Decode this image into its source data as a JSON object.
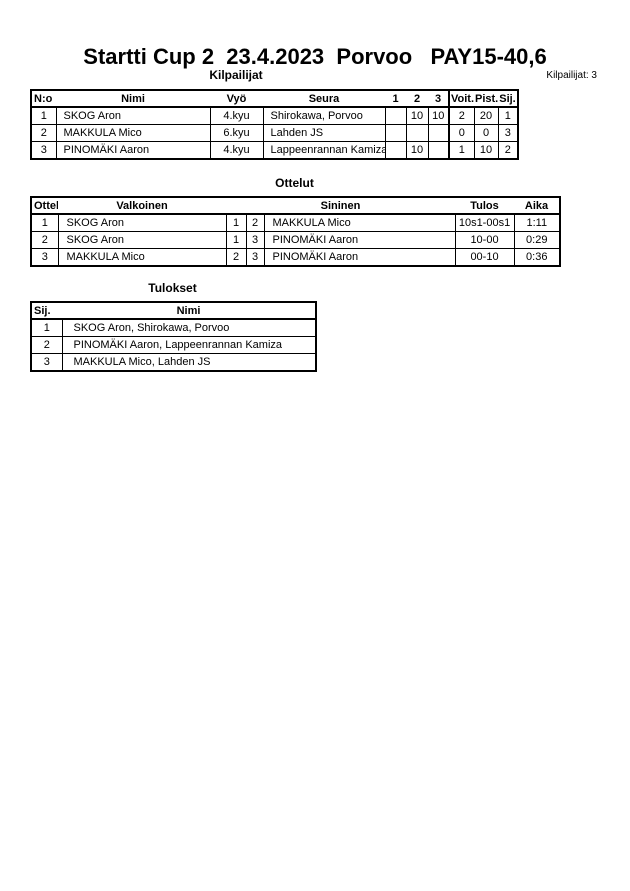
{
  "title": "Startti Cup 2  23.4.2023  Porvoo   PAY15-40,6",
  "competitors_count_label": "Kilpailijat: 3",
  "tables": {
    "kilpailijat": {
      "heading": "Kilpailijat",
      "columns": [
        "N:o",
        "Nimi",
        "Vyö",
        "Seura",
        "1",
        "2",
        "3",
        "Voit.",
        "Pist.",
        "Sij."
      ],
      "rows": [
        [
          "1",
          "SKOG Aron",
          "4.kyu",
          "Shirokawa, Porvoo",
          "",
          "10",
          "10",
          "2",
          "20",
          "1"
        ],
        [
          "2",
          "MAKKULA Mico",
          "6.kyu",
          "Lahden JS",
          "",
          "",
          "",
          "0",
          "0",
          "3"
        ],
        [
          "3",
          "PINOMÄKI Aaron",
          "4.kyu",
          "Lappeenrannan Kamiza",
          "",
          "10",
          "",
          "1",
          "10",
          "2"
        ]
      ]
    },
    "ottelut": {
      "heading": "Ottelut",
      "columns": [
        "Ottelu",
        "Valkoinen",
        "",
        "",
        "Sininen",
        "Tulos",
        "Aika"
      ],
      "rows": [
        [
          "1",
          "SKOG Aron",
          "1",
          "2",
          "MAKKULA Mico",
          "10s1-00s1",
          "1:11"
        ],
        [
          "2",
          "SKOG Aron",
          "1",
          "3",
          "PINOMÄKI Aaron",
          "10-00",
          "0:29"
        ],
        [
          "3",
          "MAKKULA Mico",
          "2",
          "3",
          "PINOMÄKI Aaron",
          "00-10",
          "0:36"
        ]
      ]
    },
    "tulokset": {
      "heading": "Tulokset",
      "columns": [
        "Sij.",
        "Nimi"
      ],
      "rows": [
        [
          "1",
          "SKOG Aron, Shirokawa, Porvoo"
        ],
        [
          "2",
          "PINOMÄKI Aaron, Lappeenrannan Kamiza"
        ],
        [
          "3",
          "MAKKULA Mico, Lahden JS"
        ]
      ]
    }
  }
}
